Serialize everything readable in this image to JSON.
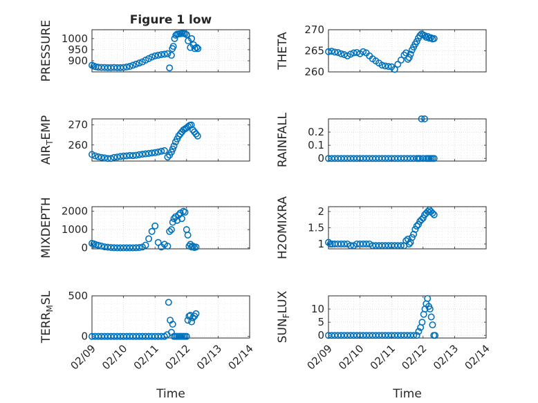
{
  "chart_data": [
    {
      "type": "scatter",
      "title": "Figure 1 low",
      "ylabel": "PRESSURE",
      "xlabel": "",
      "xlim": [
        0,
        5
      ],
      "ylim": [
        850,
        1040
      ],
      "yticks": [
        900,
        950,
        1000
      ],
      "xtick_labels": [],
      "color": "#0072BD",
      "x": [
        0.0,
        0.06,
        0.12,
        0.2,
        0.3,
        0.4,
        0.5,
        0.6,
        0.7,
        0.8,
        0.9,
        1.0,
        1.1,
        1.2,
        1.3,
        1.4,
        1.5,
        1.6,
        1.7,
        1.8,
        1.9,
        2.0,
        2.1,
        2.2,
        2.3,
        2.4,
        2.46,
        2.52,
        2.55,
        2.58,
        2.62,
        2.66,
        2.7,
        2.75,
        2.8,
        2.85,
        2.9,
        2.95,
        3.0,
        3.05,
        3.12,
        3.16,
        3.22,
        3.26,
        3.32,
        3.36
      ],
      "y": [
        880,
        876,
        873,
        871,
        870,
        870,
        869,
        869,
        870,
        869,
        869,
        870,
        872,
        875,
        880,
        885,
        890,
        895,
        903,
        910,
        917,
        922,
        925,
        928,
        930,
        932,
        868,
        925,
        955,
        965,
        1000,
        1015,
        1020,
        1021,
        1022,
        1023,
        1023,
        1022,
        1018,
        990,
        960,
        1000,
        972,
        955,
        960,
        955
      ]
    },
    {
      "type": "scatter",
      "title": "",
      "ylabel": "THETA",
      "xlabel": "",
      "xlim": [
        0,
        5
      ],
      "ylim": [
        260,
        270
      ],
      "yticks": [
        260,
        265,
        270
      ],
      "xtick_labels": [],
      "color": "#0072BD",
      "x": [
        0.0,
        0.1,
        0.2,
        0.3,
        0.4,
        0.5,
        0.6,
        0.7,
        0.8,
        0.9,
        1.0,
        1.1,
        1.2,
        1.3,
        1.4,
        1.5,
        1.6,
        1.7,
        1.8,
        1.9,
        2.0,
        2.1,
        2.2,
        2.3,
        2.4,
        2.46,
        2.52,
        2.56,
        2.6,
        2.65,
        2.7,
        2.75,
        2.8,
        2.85,
        2.9,
        2.95,
        3.0,
        3.05,
        3.1,
        3.15,
        3.2,
        3.25,
        3.3,
        3.35
      ],
      "y": [
        264.8,
        264.9,
        264.7,
        264.6,
        264.3,
        264.1,
        263.8,
        264.2,
        264.5,
        264.6,
        264.3,
        264.8,
        264.5,
        263.8,
        263.1,
        262.6,
        262.1,
        261.6,
        261.4,
        261.3,
        261.2,
        260.6,
        261.8,
        262.8,
        264.0,
        264.5,
        263.0,
        263.4,
        264.2,
        265.2,
        265.9,
        266.6,
        267.2,
        268.0,
        268.6,
        269.0,
        268.8,
        268.6,
        268.2,
        268.4,
        268.0,
        268.1,
        267.8,
        267.9
      ]
    },
    {
      "type": "scatter",
      "title": "",
      "ylabel": "AIR_TEMP",
      "xlabel": "",
      "xlim": [
        0,
        5
      ],
      "ylim": [
        252,
        273
      ],
      "yticks": [
        260,
        270
      ],
      "xtick_labels": [],
      "color": "#0072BD",
      "x": [
        0.0,
        0.1,
        0.2,
        0.3,
        0.4,
        0.5,
        0.6,
        0.7,
        0.8,
        0.9,
        1.0,
        1.1,
        1.2,
        1.3,
        1.4,
        1.5,
        1.6,
        1.7,
        1.8,
        1.9,
        2.0,
        2.1,
        2.2,
        2.3,
        2.4,
        2.46,
        2.52,
        2.56,
        2.6,
        2.65,
        2.7,
        2.75,
        2.8,
        2.85,
        2.9,
        2.95,
        3.0,
        3.05,
        3.1,
        3.15,
        3.2,
        3.25,
        3.3,
        3.35
      ],
      "y": [
        255.3,
        254.6,
        254.1,
        253.8,
        253.6,
        253.3,
        253.3,
        253.8,
        254.0,
        254.3,
        254.5,
        254.6,
        254.8,
        254.7,
        254.9,
        255.2,
        255.4,
        255.6,
        255.8,
        256.0,
        256.2,
        256.5,
        256.9,
        257.2,
        254.0,
        255.0,
        256.5,
        258.0,
        259.5,
        261.5,
        263.0,
        264.5,
        265.5,
        266.5,
        267.5,
        268.0,
        268.5,
        269.2,
        269.8,
        270.0,
        267.5,
        266.5,
        265.5,
        264.5
      ]
    },
    {
      "type": "scatter",
      "title": "",
      "ylabel": "RAINFALL",
      "xlabel": "",
      "xlim": [
        0,
        5
      ],
      "ylim": [
        -0.02,
        0.3
      ],
      "yticks": [
        0,
        0.1,
        0.2
      ],
      "xtick_labels": [],
      "color": "#0072BD",
      "x": [
        0.0,
        0.1,
        0.2,
        0.3,
        0.4,
        0.5,
        0.6,
        0.7,
        0.8,
        0.9,
        1.0,
        1.1,
        1.2,
        1.3,
        1.4,
        1.5,
        1.6,
        1.7,
        1.8,
        1.9,
        2.0,
        2.1,
        2.2,
        2.3,
        2.4,
        2.5,
        2.6,
        2.7,
        2.8,
        2.85,
        2.9,
        2.95,
        3.0,
        3.05,
        3.1,
        3.15,
        3.2,
        3.25,
        3.3,
        3.35
      ],
      "y": [
        0,
        0,
        0,
        0,
        0,
        0,
        0,
        0,
        0,
        0,
        0,
        0,
        0,
        0,
        0,
        0,
        0,
        0,
        0,
        0,
        0,
        0,
        0,
        0,
        0,
        0,
        0,
        0,
        0,
        0,
        0,
        0.3,
        0,
        0.3,
        0,
        0,
        0,
        0,
        0,
        0
      ]
    },
    {
      "type": "scatter",
      "title": "",
      "ylabel": "MIXDEPTH",
      "xlabel": "",
      "xlim": [
        0,
        5
      ],
      "ylim": [
        -50,
        2250
      ],
      "yticks": [
        0,
        1000,
        2000
      ],
      "xtick_labels": [],
      "color": "#0072BD",
      "x": [
        0.0,
        0.06,
        0.12,
        0.2,
        0.3,
        0.4,
        0.5,
        0.6,
        0.7,
        0.8,
        0.9,
        1.0,
        1.1,
        1.2,
        1.3,
        1.4,
        1.5,
        1.6,
        1.7,
        1.8,
        1.9,
        2.0,
        2.1,
        2.2,
        2.3,
        2.4,
        2.46,
        2.52,
        2.56,
        2.6,
        2.65,
        2.7,
        2.75,
        2.8,
        2.85,
        2.9,
        2.95,
        3.0,
        3.04,
        3.08,
        3.12,
        3.16,
        3.2,
        3.25,
        3.3
      ],
      "y": [
        250,
        220,
        180,
        150,
        100,
        60,
        40,
        20,
        10,
        5,
        5,
        5,
        5,
        5,
        5,
        10,
        20,
        50,
        150,
        500,
        900,
        1200,
        300,
        50,
        200,
        100,
        900,
        1000,
        1400,
        1600,
        1700,
        1500,
        1800,
        1900,
        1600,
        2000,
        1950,
        1000,
        700,
        100,
        200,
        50,
        100,
        20,
        50
      ]
    },
    {
      "type": "scatter",
      "title": "",
      "ylabel": "H2OMIXRA",
      "xlabel": "",
      "xlim": [
        0,
        5
      ],
      "ylim": [
        0.85,
        2.15
      ],
      "yticks": [
        1,
        1.5,
        2
      ],
      "xtick_labels": [],
      "color": "#0072BD",
      "x": [
        0.0,
        0.06,
        0.12,
        0.2,
        0.3,
        0.4,
        0.5,
        0.6,
        0.7,
        0.8,
        0.9,
        1.0,
        1.1,
        1.2,
        1.3,
        1.4,
        1.5,
        1.6,
        1.7,
        1.8,
        1.9,
        2.0,
        2.1,
        2.2,
        2.3,
        2.4,
        2.46,
        2.52,
        2.56,
        2.6,
        2.65,
        2.7,
        2.75,
        2.8,
        2.85,
        2.9,
        2.95,
        3.0,
        3.05,
        3.1,
        3.15,
        3.2,
        3.25,
        3.3,
        3.35
      ],
      "y": [
        1.05,
        1.0,
        1.0,
        1.0,
        1.0,
        1.0,
        1.0,
        1.0,
        0.95,
        0.95,
        1.0,
        1.0,
        1.0,
        1.0,
        1.0,
        0.95,
        0.95,
        0.95,
        0.95,
        0.95,
        0.95,
        0.95,
        0.95,
        0.95,
        0.95,
        0.95,
        1.1,
        1.15,
        1.0,
        1.05,
        1.2,
        1.3,
        1.45,
        1.55,
        1.6,
        1.7,
        1.75,
        1.8,
        1.9,
        1.95,
        2.0,
        2.05,
        2.0,
        1.95,
        1.9
      ]
    },
    {
      "type": "scatter",
      "title": "",
      "ylabel": "TERR_MSL",
      "xlabel": "Time",
      "xlim": [
        0,
        5
      ],
      "ylim": [
        -20,
        500
      ],
      "yticks": [
        0,
        500
      ],
      "xtick_labels": [
        "02/09",
        "02/10",
        "02/11",
        "02/12",
        "02/13",
        "02/14"
      ],
      "color": "#0072BD",
      "x": [
        0.0,
        0.1,
        0.2,
        0.3,
        0.4,
        0.5,
        0.6,
        0.7,
        0.8,
        0.9,
        1.0,
        1.1,
        1.2,
        1.3,
        1.4,
        1.5,
        1.6,
        1.7,
        1.8,
        1.9,
        2.0,
        2.1,
        2.2,
        2.3,
        2.38,
        2.43,
        2.48,
        2.52,
        2.56,
        2.6,
        2.65,
        2.7,
        2.75,
        2.8,
        2.85,
        2.9,
        2.95,
        3.0,
        3.04,
        3.08,
        3.12,
        3.16,
        3.2,
        3.25,
        3.3
      ],
      "y": [
        0,
        0,
        0,
        0,
        0,
        0,
        0,
        0,
        0,
        0,
        0,
        0,
        0,
        0,
        0,
        0,
        0,
        0,
        0,
        0,
        0,
        0,
        0,
        0,
        20,
        420,
        200,
        50,
        150,
        0,
        0,
        0,
        0,
        0,
        0,
        0,
        0,
        0,
        200,
        250,
        260,
        180,
        230,
        250,
        280
      ]
    },
    {
      "type": "scatter",
      "title": "",
      "ylabel": "SUN_FLUX",
      "xlabel": "Time",
      "xlim": [
        0,
        5
      ],
      "ylim": [
        -1,
        15
      ],
      "yticks": [
        0,
        5,
        10
      ],
      "xtick_labels": [
        "02/09",
        "02/10",
        "02/11",
        "02/12",
        "02/13",
        "02/14"
      ],
      "color": "#0072BD",
      "x": [
        0.0,
        0.1,
        0.2,
        0.3,
        0.4,
        0.5,
        0.6,
        0.7,
        0.8,
        0.9,
        1.0,
        1.1,
        1.2,
        1.3,
        1.4,
        1.5,
        1.6,
        1.7,
        1.8,
        1.9,
        2.0,
        2.1,
        2.2,
        2.3,
        2.4,
        2.5,
        2.6,
        2.7,
        2.8,
        2.86,
        2.92,
        2.97,
        3.02,
        3.06,
        3.1,
        3.14,
        3.18,
        3.22,
        3.26,
        3.3,
        3.34,
        3.38
      ],
      "y": [
        0,
        0,
        0,
        0,
        0,
        0,
        0,
        0,
        0,
        0,
        0,
        0,
        0,
        0,
        0,
        0,
        0,
        0,
        0,
        0,
        0,
        0,
        0,
        0,
        0,
        0,
        0,
        0,
        0,
        1.5,
        3,
        5,
        8,
        10,
        12,
        14,
        11,
        10,
        7,
        4,
        0,
        0
      ]
    }
  ]
}
